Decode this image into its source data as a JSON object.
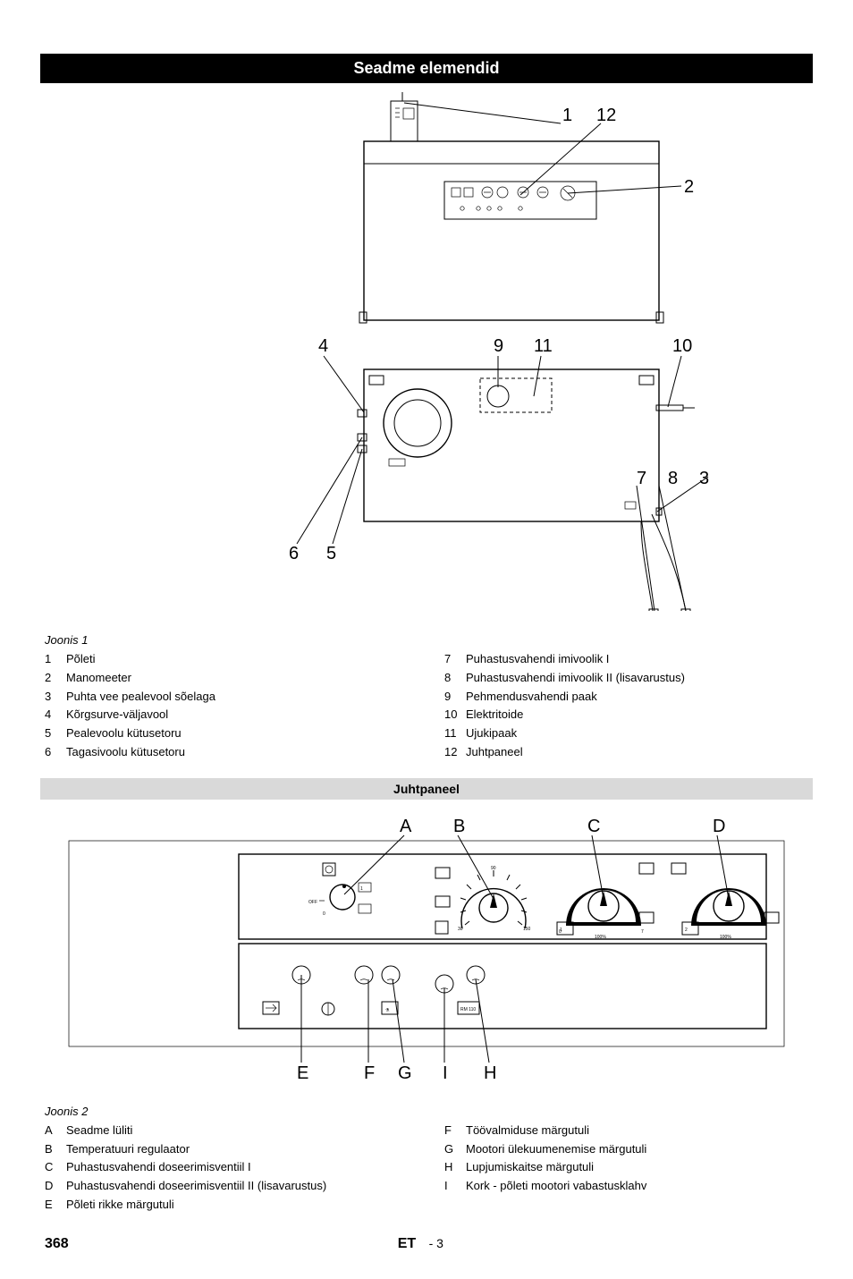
{
  "banner": "Seadme elemendid",
  "figure1": {
    "caption": "Joonis 1",
    "callouts_top": {
      "l1": "1",
      "l12": "12",
      "l2": "2"
    },
    "callouts_bottom": {
      "l4": "4",
      "l9": "9",
      "l11": "11",
      "l10": "10",
      "l7": "7",
      "l8": "8",
      "l3": "3",
      "l6": "6",
      "l5": "5"
    },
    "legend_left": [
      {
        "n": "1",
        "t": "Põleti"
      },
      {
        "n": "2",
        "t": "Manomeeter"
      },
      {
        "n": "3",
        "t": "Puhta vee pealevool sõelaga"
      },
      {
        "n": "4",
        "t": "Kõrgsurve-väljavool"
      },
      {
        "n": "5",
        "t": "Pealevoolu kütusetoru"
      },
      {
        "n": "6",
        "t": "Tagasivoolu kütusetoru"
      }
    ],
    "legend_right": [
      {
        "n": "7",
        "t": "Puhastusvahendi imivoolik I"
      },
      {
        "n": "8",
        "t": "Puhastusvahendi imivoolik II (lisavarustus)"
      },
      {
        "n": "9",
        "t": "Pehmendusvahendi paak"
      },
      {
        "n": "10",
        "t": "Elektritoide"
      },
      {
        "n": "11",
        "t": "Ujukipaak"
      },
      {
        "n": "12",
        "t": "Juhtpaneel"
      }
    ]
  },
  "subheading": "Juhtpaneel",
  "figure2": {
    "caption": "Joonis 2",
    "callouts_top": {
      "A": "A",
      "B": "B",
      "C": "C",
      "D": "D"
    },
    "callouts_bottom": {
      "E": "E",
      "F": "F",
      "G": "G",
      "I": "I",
      "H": "H"
    },
    "legend_left": [
      {
        "n": "A",
        "t": "Seadme lüliti"
      },
      {
        "n": "B",
        "t": "Temperatuuri regulaator"
      },
      {
        "n": "C",
        "t": "Puhastusvahendi doseerimisventiil I"
      },
      {
        "n": "D",
        "t": "Puhastusvahendi doseerimisventiil II (lisavarustus)"
      },
      {
        "n": "E",
        "t": "Põleti rikke märgutuli"
      }
    ],
    "legend_right": [
      {
        "n": "F",
        "t": "Töövalmiduse märgutuli"
      },
      {
        "n": "G",
        "t": "Mootori ülekuumenemise märgutuli"
      },
      {
        "n": "H",
        "t": "Lupjumiskaitse märgutuli"
      },
      {
        "n": "I",
        "t": "Kork - põleti mootori vabastusklahv"
      }
    ]
  },
  "footer": {
    "page": "368",
    "lang": "ET",
    "sub": "- 3"
  }
}
